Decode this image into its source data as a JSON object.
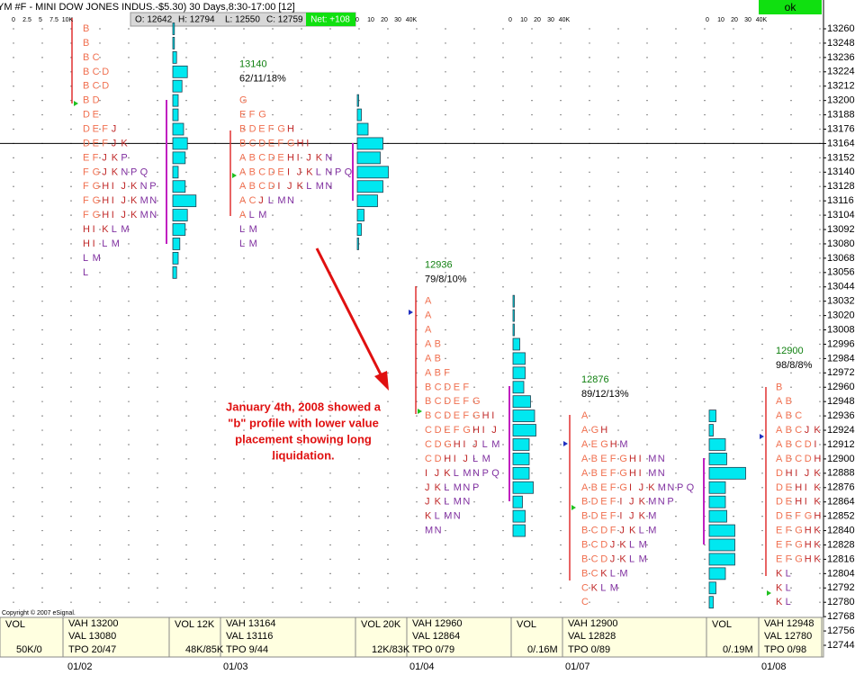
{
  "header": {
    "title": "YM #F - MINI DOW JONES INDUS.-$5.30) 30 Days,8:30-17:00 [12]",
    "ohlc": [
      "O: 12642",
      "H: 12794",
      "L: 12550",
      "C: 12759"
    ],
    "net": "Net: +108",
    "status": "ok"
  },
  "price_axis": [
    13260,
    13248,
    13236,
    13224,
    13212,
    13200,
    13188,
    13176,
    13164,
    13152,
    13140,
    13128,
    13116,
    13104,
    13092,
    13080,
    13068,
    13056,
    13044,
    13032,
    13020,
    13008,
    12996,
    12984,
    12972,
    12960,
    12948,
    12936,
    12924,
    12912,
    12900,
    12888,
    12876,
    12864,
    12852,
    12840,
    12828,
    12816,
    12804,
    12792,
    12780,
    12768,
    12756,
    12744
  ],
  "volume_scales": [
    {
      "ticks": [
        0,
        2.5,
        5,
        7.5,
        {
          "value": 10,
          "label": "10K"
        }
      ]
    },
    {
      "ticks": [
        0,
        10,
        20,
        30,
        {
          "value": 40,
          "label": "40K"
        }
      ]
    },
    {
      "ticks": [
        0,
        10,
        20,
        30,
        {
          "value": 40,
          "label": "40K"
        }
      ]
    },
    {
      "ticks": [
        0,
        10,
        20,
        30,
        {
          "value": 40,
          "label": "40K"
        }
      ]
    }
  ],
  "profiles": [
    {
      "top": 13260,
      "rows": [
        "B",
        "B",
        "B C",
        "B C D",
        "B C D",
        "B D",
        "D E",
        "D E F J",
        "D E F J K",
        "E F J K P",
        "F G J K N P Q",
        "F G H I J K N P",
        "F G H I J K M N",
        "F G H I J K M N",
        "H I K L M",
        "H I L M",
        "L M",
        "L"
      ],
      "volume": [
        0.3,
        0.3,
        0.7,
        2.7,
        1.7,
        1,
        1,
        2,
        2.7,
        2.3,
        1,
        2.3,
        4.3,
        2.7,
        2.3,
        1.3,
        1,
        0.7
      ]
    },
    {
      "top": 13200,
      "poc": "13140",
      "stats": "62/11/18%",
      "rows": [
        "G",
        "E F G",
        "B D E F G H",
        "B C D E F G H I",
        "A B C D E H I J K N",
        "A B C D E I J K L N P Q",
        "A B C D I J K L M N",
        "A C J L M N",
        "A L M",
        "L M",
        "L M"
      ],
      "volume": [
        1,
        3,
        8,
        19,
        17,
        23,
        19,
        15,
        5,
        3,
        1
      ]
    },
    {
      "top": 13032,
      "poc": "12936",
      "stats": "79/8/10%",
      "rows": [
        "A",
        "A",
        "A",
        "A B",
        "A B",
        "A B F",
        "B C D E F",
        "B C D E F G",
        "B C D E F G H I",
        "C D E F G H I J",
        "C D G H I J L M",
        "C D H I J L M",
        "I J K L M N P Q",
        "J K L M N P",
        "J K L M N",
        "K L M N",
        "M N"
      ],
      "volume": [
        1,
        1,
        1,
        5,
        9,
        9,
        8,
        13,
        16,
        17,
        12,
        12,
        12,
        15,
        7,
        9,
        9
      ]
    },
    {
      "top": 12936,
      "poc": "12876",
      "stats": "89/12/13%",
      "rows": [
        "A",
        "A G H",
        "A E G H M",
        "A B E F G H I M N",
        "A B E F G H I M N",
        "A B E F G I J K M N P Q",
        "B D E F I J K M N P",
        "B D E F I J K M",
        "B C D F J K L M",
        "B C D J K L M",
        "B C D J K L M",
        "B C K L M",
        "C K L M",
        "C"
      ],
      "volume": [
        5,
        3,
        12,
        13,
        27,
        12,
        12,
        13,
        19,
        19,
        19,
        12,
        5,
        3
      ]
    },
    {
      "top": 12960,
      "poc": "12900",
      "stats": "98/8/8%",
      "rows": [
        "B",
        "A B",
        "A B C",
        "A B C J K",
        "A B C D I",
        "A B C D H",
        "D H I J K",
        "D E H I K",
        "D E H I K",
        "D E F G H",
        "E F G H K",
        "E F G H K",
        "E F G H K",
        "K L",
        "K L",
        "K L"
      ]
    }
  ],
  "annotation": [
    "January 4th, 2008 showed a",
    "\"b\" profile with lower value",
    "placement showing long",
    "liquidation."
  ],
  "copyright": "Copyright © 2007 eSignal.",
  "info_panel": [
    [
      "VOL",
      "50K/0"
    ],
    [
      "VAH 13200",
      "VAL 13080",
      "TPO 20/47"
    ],
    [
      "VOL 12K",
      "48K/85K"
    ],
    [
      "VAH 13164",
      "VAL 13116",
      "TPO 9/44"
    ],
    [
      "VOL 20K",
      "12K/83K"
    ],
    [
      "VAH 12960",
      "VAL 12864",
      "TPO 0/79"
    ],
    [
      "VOL",
      "0/.16M"
    ],
    [
      "VAH 12900",
      "VAL 12828",
      "TPO 0/89"
    ],
    [
      "VOL",
      "0/.19M"
    ],
    [
      "VAH 12948",
      "VAL 12780",
      "TPO 0/98"
    ]
  ],
  "dates": [
    "01/02",
    "01/03",
    "01/04",
    "01/07",
    "01/08"
  ]
}
